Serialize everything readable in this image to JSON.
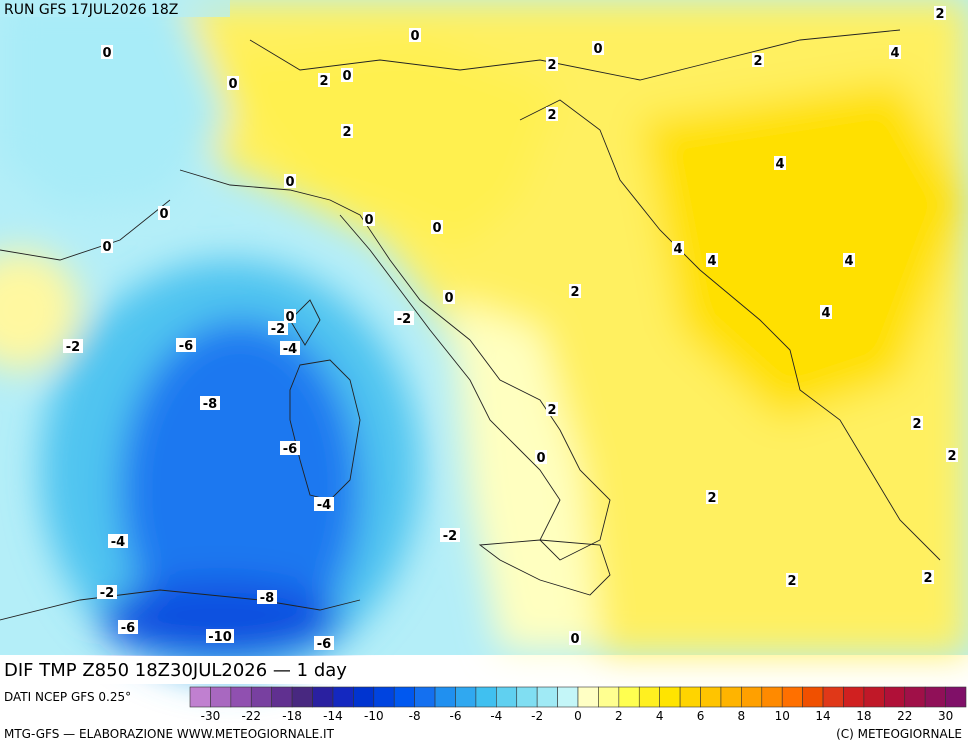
{
  "header": {
    "run": "RUN GFS 17JUL2026 18Z"
  },
  "footer": {
    "title": "DIF TMP Z850 18Z30JUL2026 — 1 day",
    "source": "DATI NCEP GFS 0.25°",
    "credit": "MTG-GFS — ELABORAZIONE WWW.METEOGIORNALE.IT",
    "copyright": "(C) METEOGIORNALE"
  },
  "map": {
    "contour_labels": [
      "0",
      "0",
      "0",
      "2",
      "4",
      "2",
      "2",
      "0",
      "2",
      "0",
      "2",
      "2",
      "4",
      "0",
      "0",
      "0",
      "0",
      "0",
      "4",
      "4",
      "4",
      "2",
      "0",
      "4",
      "0",
      "-2",
      "-2",
      "-2",
      "-6",
      "-4",
      "-8",
      "2",
      "2",
      "-6",
      "0",
      "2",
      "2",
      "-4",
      "-2",
      "-4",
      "2",
      "2",
      "-2",
      "-8",
      "-6",
      "-10",
      "-6",
      "0"
    ]
  },
  "colorbar": {
    "colors": [
      "#c080d0",
      "#a868c0",
      "#9050b0",
      "#7840a0",
      "#603090",
      "#482880",
      "#2a20a0",
      "#1428c0",
      "#0034d0",
      "#0044e0",
      "#0058f0",
      "#1470f0",
      "#2090f0",
      "#30a8f0",
      "#40c0f0",
      "#60d0f0",
      "#80def2",
      "#a0eaf5",
      "#c4f6f8",
      "#ffffc4",
      "#ffff90",
      "#ffff50",
      "#fff020",
      "#ffe400",
      "#ffd400",
      "#ffc400",
      "#ffb400",
      "#ffa000",
      "#ff8a00",
      "#ff7000",
      "#f05000",
      "#e03818",
      "#d02020",
      "#c01828",
      "#b01038",
      "#a01048",
      "#901058",
      "#801068"
    ],
    "ticks": [
      "-30",
      "-22",
      "-18",
      "-14",
      "-10",
      "-8",
      "-6",
      "-4",
      "-2",
      "0",
      "2",
      "4",
      "6",
      "8",
      "10",
      "14",
      "18",
      "22",
      "30"
    ]
  }
}
